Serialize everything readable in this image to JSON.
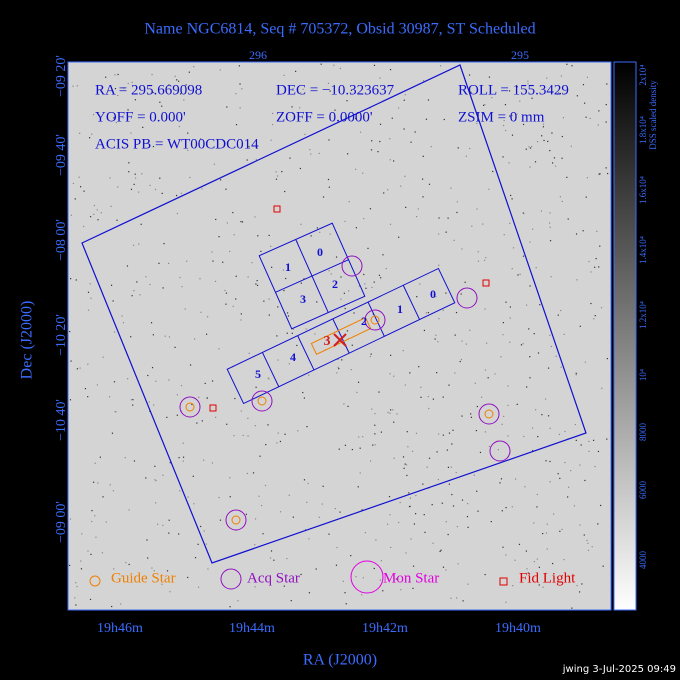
{
  "title": "Name NGC6814, Seq # 705372, Obsid 30987, ST Scheduled",
  "axes": {
    "top_ticks": [
      "296",
      "295"
    ],
    "left_ticks": [
      "−09 20'",
      "−09 40'",
      "−08 00'",
      "−10 20'",
      "−10 40'",
      "−09 00'"
    ],
    "left_label": "Dec (J2000)",
    "bottom_ticks": [
      "19h46m",
      "19h44m",
      "19h42m",
      "19h40m"
    ],
    "bottom_label": "RA (J2000)"
  },
  "colorbar": {
    "label": "DSS scaled density",
    "ticks": [
      "2x10⁴",
      "1.8x10⁴",
      "1.6x10⁴",
      "1.4x10⁴",
      "1.2x10⁴",
      "10⁴",
      "8000",
      "6000",
      "4000"
    ]
  },
  "info": [
    "RA = 295.669098",
    "DEC = −10.323637",
    "ROLL = 155.3429",
    "YOFF = 0.000'",
    "ZOFF = 0.0000'",
    "ZSIM = 0 mm",
    "ACIS PB = WT00CDC014"
  ],
  "chips": {
    "i_array": [
      "1",
      "0",
      "3",
      "2"
    ],
    "s_array": [
      "5",
      "4",
      "3",
      "2",
      "1",
      "0"
    ]
  },
  "legend": [
    "Guide Star",
    "Acq Star",
    "Mon Star",
    "Fid Light"
  ],
  "footer": "jwing  3-Jul-2025 09:49"
}
